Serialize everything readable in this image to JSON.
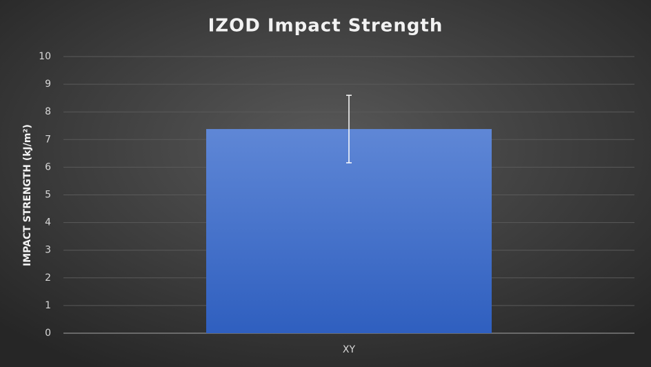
{
  "chart_data": {
    "type": "bar",
    "title": "IZOD Impact Strength",
    "y_label": "IMPACT STRENGTH (kJ/m²)",
    "categories": [
      "XY"
    ],
    "values": [
      7.38
    ],
    "errors": [
      1.22
    ],
    "color": "#4a76d0",
    "ylim": [
      0,
      10
    ],
    "yticks": [
      0,
      1,
      2,
      3,
      4,
      5,
      6,
      7,
      8,
      9,
      10
    ],
    "grid": true
  }
}
